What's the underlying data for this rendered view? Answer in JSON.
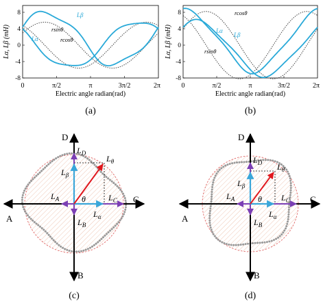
{
  "panels": {
    "a": {
      "caption": "(a)",
      "ylabel": "Lα, Lβ (mH)",
      "xlabel": "Electric angle radian(rad)",
      "yticks": [
        "8",
        "4",
        "0",
        "-4",
        "-8"
      ],
      "xticks": [
        "0",
        "π/2",
        "π",
        "3π/2",
        "2π"
      ],
      "labels": {
        "lb": "Lβ",
        "la": "Lα",
        "rsin": "rsinθ",
        "rcos": "rcosθ"
      }
    },
    "b": {
      "caption": "(b)",
      "ylabel": "Lα, Lβ (mH)",
      "xlabel": "Electric angle radian(rad)",
      "yticks": [
        "8",
        "4",
        "0",
        "-4",
        "-8"
      ],
      "xticks": [
        "0",
        "π/2",
        "π",
        "3π/2",
        "2π"
      ],
      "labels": {
        "rcos": "rcosθ",
        "la": "Lα",
        "lb": "Lβ",
        "rsin": "rsinθ"
      }
    },
    "c": {
      "caption": "(c)",
      "axes": {
        "a": "A",
        "b": "B",
        "c": "C",
        "d": "D"
      },
      "vec": {
        "ld": "L",
        "ld_sub": "D",
        "lb": "L",
        "lb_sub": "β",
        "lt": "L",
        "lt_sub": "θ",
        "la_left": "L",
        "la_left_sub": "A",
        "theta": "θ",
        "lc": "L",
        "lc_sub": "C",
        "lbb": "L",
        "lbb_sub": "B",
        "lalpha": "L",
        "lalpha_sub": "α"
      }
    },
    "d": {
      "caption": "(d)",
      "axes": {
        "a": "A",
        "b": "B",
        "c": "C",
        "d": "D"
      },
      "vec": {
        "ld": "L",
        "ld_sub": "D",
        "lb": "L",
        "lb_sub": "β",
        "lt": "L",
        "lt_sub": "θ",
        "la_left": "L",
        "la_left_sub": "A",
        "theta": "θ",
        "lc": "L",
        "lc_sub": "C",
        "lbb": "L",
        "lbb_sub": "B",
        "lalpha": "L",
        "lalpha_sub": "α"
      }
    }
  },
  "colors": {
    "curve": "#29a9d8",
    "dotted": "#444444",
    "vector": "#e0181e",
    "purple": "#7b3fb4",
    "blue": "#3aa6d9",
    "circle": "#e06666",
    "hatch": "#f3d9cd",
    "dots": "#9a9a9a"
  }
}
